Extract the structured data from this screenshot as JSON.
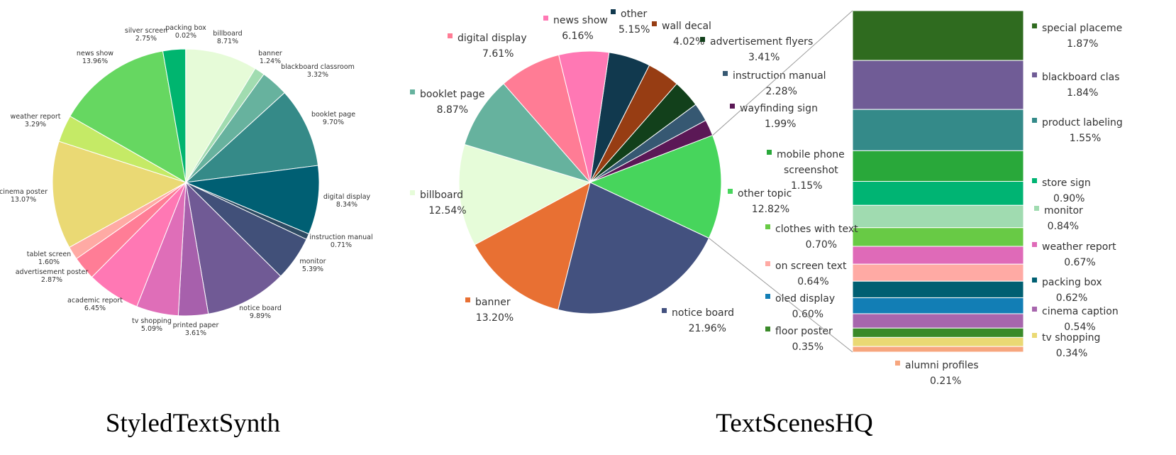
{
  "chart_data": [
    {
      "type": "pie",
      "title": "StyledTextSynth",
      "slices": [
        {
          "label": "billboard",
          "value": 8.71,
          "display": "8.71%",
          "color": "#e6fbd8"
        },
        {
          "label": "banner",
          "value": 1.24,
          "display": "1.24%",
          "color": "#a1dcb0"
        },
        {
          "label": "blackboard classroom",
          "value": 3.32,
          "display": "3.32%",
          "color": "#67b29e"
        },
        {
          "label": "booklet page",
          "value": 9.7,
          "display": "9.70%",
          "color": "#358a88"
        },
        {
          "label": "digital display",
          "value": 8.34,
          "display": "8.34%",
          "color": "#005f73"
        },
        {
          "label": "instruction manual",
          "value": 0.71,
          "display": "0.71%",
          "color": "#2e4b63"
        },
        {
          "label": "monitor",
          "value": 5.39,
          "display": "5.39%",
          "color": "#415079"
        },
        {
          "label": "notice board",
          "value": 9.89,
          "display": "9.89%",
          "color": "#705a95"
        },
        {
          "label": "printed paper",
          "value": 3.61,
          "display": "3.61%",
          "color": "#a760ac"
        },
        {
          "label": "tv shopping",
          "value": 5.09,
          "display": "5.09%",
          "color": "#df6eb8"
        },
        {
          "label": "academic report",
          "value": 6.45,
          "display": "6.45%",
          "color": "#ff78b4"
        },
        {
          "label": "advertisement poster",
          "value": 2.87,
          "display": "2.87%",
          "color": "#ff7d96"
        },
        {
          "label": "tablet screen",
          "value": 1.6,
          "display": "1.60%",
          "color": "#ffaaa4"
        },
        {
          "label": "cinema poster",
          "value": 13.07,
          "display": "13.07%",
          "color": "#ead974"
        },
        {
          "label": "weather report",
          "value": 3.29,
          "display": "3.29%",
          "color": "#c5ea66"
        },
        {
          "label": "news show",
          "value": 13.96,
          "display": "13.96%",
          "color": "#66d761"
        },
        {
          "label": "silver screen",
          "value": 2.75,
          "display": "2.75%",
          "color": "#00b56f"
        },
        {
          "label": "packing box",
          "value": 0.02,
          "display": "0.02%",
          "color": "#6bc8a4"
        }
      ]
    },
    {
      "type": "pie",
      "title": "TextScenesHQ",
      "slices": [
        {
          "label": "other",
          "value": 5.15,
          "display": "5.15%",
          "color": "#11394e"
        },
        {
          "label": "wall decal",
          "value": 4.02,
          "display": "4.02%",
          "color": "#973d13"
        },
        {
          "label": "advertisement flyers",
          "value": 3.41,
          "display": "3.41%",
          "color": "#12401b"
        },
        {
          "label": "instruction manual",
          "value": 2.28,
          "display": "2.28%",
          "color": "#365872"
        },
        {
          "label": "wayfinding sign",
          "value": 1.99,
          "display": "1.99%",
          "color": "#5b1856"
        },
        {
          "label": "other topic",
          "value": 12.82,
          "display": "12.82%",
          "color": "#47d55c"
        },
        {
          "label": "notice board",
          "value": 21.96,
          "display": "21.96%",
          "color": "#43517f"
        },
        {
          "label": "banner",
          "value": 13.2,
          "display": "13.20%",
          "color": "#e87033"
        },
        {
          "label": "billboard",
          "value": 12.54,
          "display": "12.54%",
          "color": "#e6fcd9"
        },
        {
          "label": "booklet page",
          "value": 8.87,
          "display": "8.87%",
          "color": "#66b29e"
        },
        {
          "label": "digital display",
          "value": 7.61,
          "display": "7.61%",
          "color": "#ff7c95"
        },
        {
          "label": "news show",
          "value": 6.16,
          "display": "6.16%",
          "color": "#ff78b4"
        }
      ],
      "breakdown": {
        "of": "other topic",
        "type": "stacked-bar",
        "items": [
          {
            "label": "special placement",
            "display_label": "special placeme",
            "value": 1.87,
            "display": "1.87%",
            "color": "#2f6b1f"
          },
          {
            "label": "blackboard classroom",
            "display_label": "blackboard clas",
            "value": 1.84,
            "display": "1.84%",
            "color": "#705c96"
          },
          {
            "label": "product labeling",
            "display_label": "product labeling",
            "value": 1.55,
            "display": "1.55%",
            "color": "#348a89"
          },
          {
            "label": "mobile phone screenshot",
            "display_label": "mobile phone screenshot",
            "value": 1.15,
            "display": "1.15%",
            "color": "#29a83a"
          },
          {
            "label": "store sign",
            "display_label": "store sign",
            "value": 0.9,
            "display": "0.90%",
            "color": "#00b473"
          },
          {
            "label": "monitor",
            "display_label": "monitor",
            "value": 0.84,
            "display": "0.84%",
            "color": "#a0dbb0"
          },
          {
            "label": "clothes with text",
            "display_label": "clothes with text",
            "value": 0.7,
            "display": "0.70%",
            "color": "#68ca45"
          },
          {
            "label": "weather report",
            "display_label": "weather report",
            "value": 0.67,
            "display": "0.67%",
            "color": "#df6ab8"
          },
          {
            "label": "on screen text",
            "display_label": "on screen text",
            "value": 0.64,
            "display": "0.64%",
            "color": "#ffaaa4"
          },
          {
            "label": "packing box",
            "display_label": "packing box",
            "value": 0.62,
            "display": "0.62%",
            "color": "#005f72"
          },
          {
            "label": "oled display",
            "display_label": "oled display",
            "value": 0.6,
            "display": "0.60%",
            "color": "#127eb5"
          },
          {
            "label": "cinema caption",
            "display_label": "cinema caption",
            "value": 0.54,
            "display": "0.54%",
            "color": "#a766ad"
          },
          {
            "label": "floor poster",
            "display_label": "floor poster",
            "value": 0.35,
            "display": "0.35%",
            "color": "#3a8a29"
          },
          {
            "label": "tv shopping",
            "display_label": "tv shopping",
            "value": 0.34,
            "display": "0.34%",
            "color": "#ead974"
          },
          {
            "label": "alumni profiles",
            "display_label": "alumni profiles",
            "value": 0.21,
            "display": "0.21%",
            "color": "#f7a67e"
          }
        ]
      }
    }
  ]
}
